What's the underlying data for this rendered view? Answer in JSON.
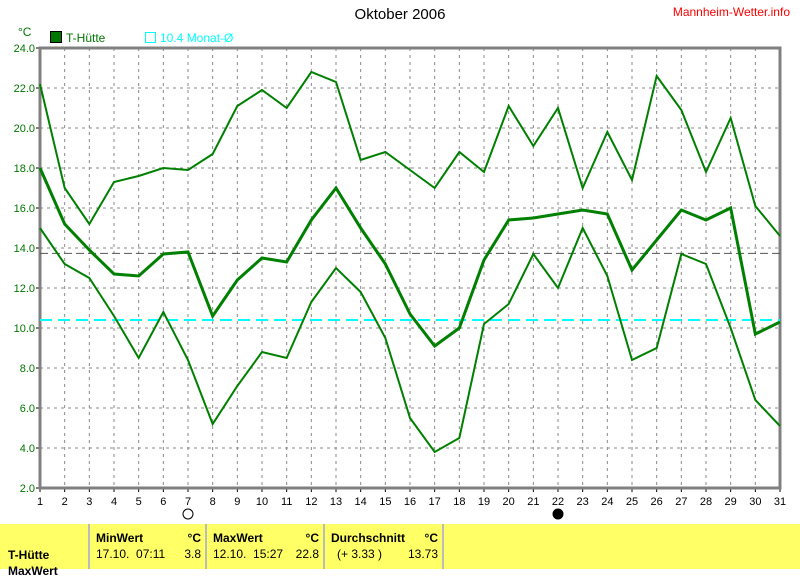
{
  "header": {
    "title": "Oktober 2006",
    "brand": "Mannheim-Wetter.info",
    "unit": "°C"
  },
  "legend": {
    "series": "T-Hütte",
    "mean_line": "10.4 Monat-Ø"
  },
  "moon": {
    "full_moon_day": 7,
    "new_moon_day": 22
  },
  "chart_data": {
    "type": "line",
    "title": "Oktober 2006",
    "ylabel": "°C",
    "ylim": [
      2,
      24
    ],
    "xlim": [
      1,
      31
    ],
    "grid": true,
    "yticks": [
      "2.0",
      "4.0",
      "6.0",
      "8.0",
      "10.0",
      "12.0",
      "14.0",
      "16.0",
      "18.0",
      "20.0",
      "22.0",
      "24.0"
    ],
    "x": [
      1,
      2,
      3,
      4,
      5,
      6,
      7,
      8,
      9,
      10,
      11,
      12,
      13,
      14,
      15,
      16,
      17,
      18,
      19,
      20,
      21,
      22,
      23,
      24,
      25,
      26,
      27,
      28,
      29,
      30,
      31
    ],
    "series": [
      {
        "role": "max",
        "color": "#008000",
        "values": [
          22.2,
          17.0,
          15.2,
          17.3,
          17.6,
          18.0,
          17.9,
          18.7,
          21.1,
          21.9,
          21.0,
          22.8,
          22.3,
          18.4,
          18.8,
          17.9,
          17.0,
          18.8,
          17.8,
          21.1,
          19.1,
          21.0,
          17.0,
          19.8,
          17.4,
          22.6,
          20.9,
          17.8,
          20.5,
          16.1,
          14.6
        ]
      },
      {
        "role": "mean",
        "color": "#008000",
        "values": [
          18.0,
          15.2,
          13.9,
          12.7,
          12.6,
          13.7,
          13.8,
          10.6,
          12.4,
          13.5,
          13.3,
          15.4,
          17.0,
          15.0,
          13.2,
          10.7,
          9.1,
          10.0,
          13.4,
          15.4,
          15.5,
          15.7,
          15.9,
          15.7,
          12.9,
          14.4,
          15.9,
          15.4,
          16.0,
          9.7,
          10.3
        ]
      },
      {
        "role": "min",
        "color": "#008000",
        "values": [
          15.0,
          13.2,
          12.5,
          10.6,
          8.5,
          10.8,
          8.4,
          5.2,
          7.1,
          8.8,
          8.5,
          11.3,
          13.0,
          11.8,
          9.5,
          5.5,
          3.8,
          4.5,
          10.2,
          11.2,
          13.7,
          12.0,
          15.0,
          12.6,
          8.4,
          9.0,
          13.7,
          13.2,
          10.0,
          6.4,
          5.1
        ]
      }
    ],
    "reference_lines": [
      {
        "value": 13.73,
        "color": "#555555"
      },
      {
        "value": 10.4,
        "color": "#00ffff"
      }
    ]
  },
  "table": {
    "row_label": "T-Hütte",
    "row2_label": "MaxWert",
    "min": {
      "header": "MinWert",
      "unit": "°C",
      "datetime": "17.10.  07:11",
      "value": "3.8"
    },
    "max": {
      "header": "MaxWert",
      "unit": "°C",
      "datetime": "12.10.  15:27",
      "value": "22.8"
    },
    "avg": {
      "header": "Durchschnitt",
      "unit": "°C",
      "deviation": "(+ 3.33 )",
      "value": "13.73"
    }
  }
}
